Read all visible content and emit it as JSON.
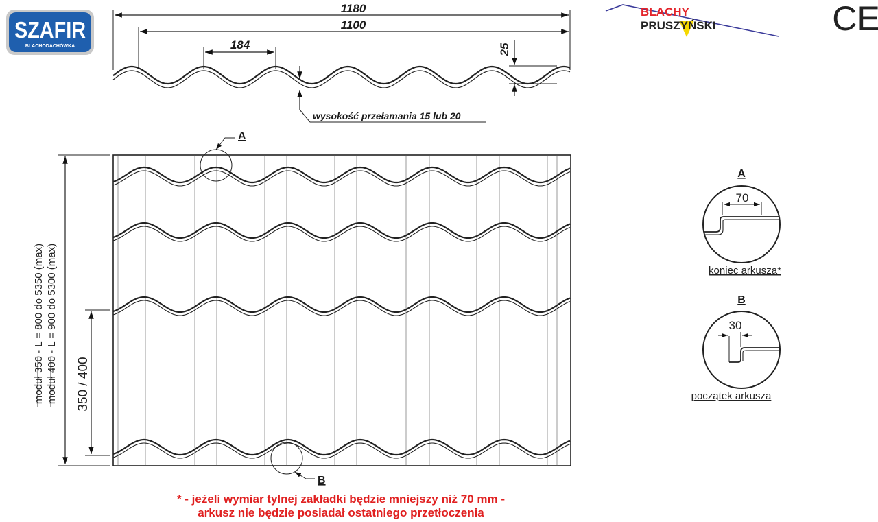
{
  "brand": {
    "szafir_title": "SZAFIR",
    "szafir_subtitle": "BLACHODACHÓWKA",
    "blachy_line1": "BLACHY",
    "blachy_line2": "PRUSZYŃSKI",
    "ce_mark": "CE",
    "colors": {
      "szafir_blue": "#1f5fae",
      "blachy_red": "#e3242b",
      "blachy_yellow": "#f5d800",
      "note_red": "#e02020"
    }
  },
  "profile": {
    "overall_width": "1180",
    "effective_width": "1100",
    "wave_pitch": "184",
    "profile_height": "25",
    "break_height_note": "wysokość przełamania 15 lub 20"
  },
  "sheet": {
    "length_module_350": "moduł 350 - L = 800 do 5350 (max)",
    "length_module_400": "moduł 400 - L = 900 do 5300 (max)",
    "module_spacing": "350 / 400",
    "callout_a": "A",
    "callout_b": "B"
  },
  "detail_a": {
    "letter": "A",
    "dimension": "70",
    "caption": "koniec arkusza*"
  },
  "detail_b": {
    "letter": "B",
    "dimension": "30",
    "caption": "początek arkusza"
  },
  "footnote": {
    "line1": "* - jeżeli wymiar tylnej zakładki będzie mniejszy niż 70 mm -",
    "line2": "arkusz nie będzie posiadał ostatniego przetłoczenia"
  }
}
